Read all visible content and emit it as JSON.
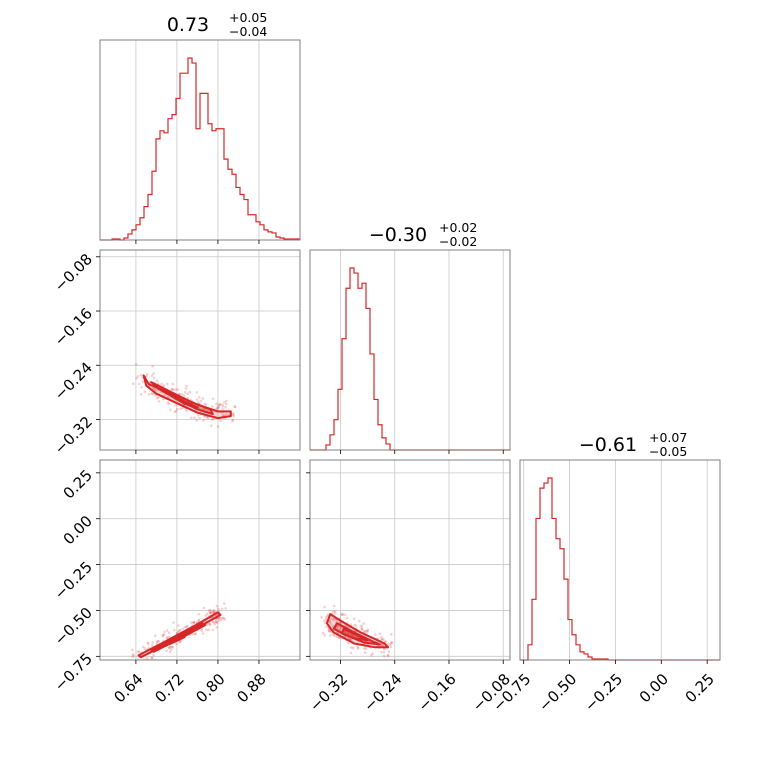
{
  "chart_data": {
    "type": "corner",
    "color": "#d62728",
    "grid": true,
    "parameters": [
      {
        "title": {
          "value": "0.73",
          "plus": "+0.05",
          "minus": "−0.04"
        },
        "ticks": [
          0.64,
          0.72,
          0.8,
          0.88
        ],
        "tick_labels": [
          "0.64",
          "0.72",
          "0.80",
          "0.88"
        ],
        "range": [
          0.57,
          0.96
        ],
        "hist_edges_start": 0.57,
        "hist_bin_width": 0.0078,
        "hist_counts": [
          0,
          0,
          0,
          1,
          1,
          0,
          2,
          6,
          10,
          15,
          22,
          33,
          45,
          68,
          100,
          108,
          106,
          120,
          124,
          140,
          165,
          165,
          180,
          175,
          110,
          145,
          145,
          115,
          108,
          110,
          110,
          80,
          70,
          65,
          52,
          45,
          40,
          25,
          25,
          18,
          15,
          10,
          8,
          7,
          3,
          2,
          1,
          1,
          1,
          1
        ]
      },
      {
        "title": {
          "value": "−0.30",
          "plus": "+0.02",
          "minus": "−0.02"
        },
        "ticks": [
          -0.32,
          -0.24,
          -0.16,
          -0.08
        ],
        "tick_labels": [
          "−0.32",
          "−0.24",
          "−0.16",
          "−0.08"
        ],
        "range": [
          -0.365,
          -0.07
        ],
        "hist_edges_start": -0.365,
        "hist_bin_width": 0.0059,
        "hist_counts": [
          0,
          0,
          0,
          0,
          5,
          15,
          30,
          60,
          110,
          160,
          180,
          175,
          160,
          165,
          140,
          95,
          50,
          25,
          12,
          6,
          0,
          0,
          0,
          0,
          0,
          0,
          0,
          0,
          0,
          0,
          0,
          0,
          0,
          0,
          0,
          0,
          0,
          0,
          0,
          0,
          0,
          0,
          0,
          0,
          0,
          0,
          0,
          0,
          0,
          0
        ]
      },
      {
        "title": {
          "value": "−0.61",
          "plus": "+0.07",
          "minus": "−0.05"
        },
        "ticks": [
          -0.75,
          -0.5,
          -0.25,
          0.0,
          0.25
        ],
        "tick_labels": [
          "−0.75",
          "−0.50",
          "−0.25",
          "0.00",
          "0.25"
        ],
        "range": [
          -0.77,
          0.32
        ],
        "hist_edges_start": -0.77,
        "hist_bin_width": 0.0218,
        "hist_counts": [
          0,
          0,
          15,
          60,
          140,
          170,
          175,
          180,
          140,
          120,
          110,
          80,
          40,
          25,
          15,
          8,
          6,
          3,
          1,
          1,
          1,
          1,
          0,
          0,
          0,
          0,
          0,
          0,
          0,
          0,
          0,
          0,
          0,
          0,
          0,
          0,
          0,
          0,
          0,
          0,
          0,
          0,
          0,
          0,
          0,
          0,
          0,
          0,
          0,
          0
        ]
      }
    ],
    "contours": {
      "p1_p0": [
        [
          [
            0.655,
            -0.255
          ],
          [
            0.665,
            -0.268
          ],
          [
            0.72,
            -0.285
          ],
          [
            0.76,
            -0.298
          ],
          [
            0.8,
            -0.308
          ],
          [
            0.825,
            -0.308
          ],
          [
            0.825,
            -0.315
          ],
          [
            0.8,
            -0.318
          ],
          [
            0.76,
            -0.31
          ],
          [
            0.72,
            -0.296
          ],
          [
            0.68,
            -0.282
          ],
          [
            0.66,
            -0.27
          ]
        ],
        [
          [
            0.67,
            -0.265
          ],
          [
            0.71,
            -0.28
          ],
          [
            0.75,
            -0.295
          ],
          [
            0.785,
            -0.305
          ],
          [
            0.79,
            -0.312
          ],
          [
            0.76,
            -0.305
          ],
          [
            0.72,
            -0.29
          ],
          [
            0.685,
            -0.275
          ]
        ],
        [
          [
            0.695,
            -0.277
          ],
          [
            0.725,
            -0.29
          ],
          [
            0.76,
            -0.302
          ],
          [
            0.735,
            -0.297
          ],
          [
            0.71,
            -0.286
          ]
        ]
      ],
      "p2_p0": [
        [
          [
            0.645,
            -0.745
          ],
          [
            0.7,
            -0.665
          ],
          [
            0.76,
            -0.575
          ],
          [
            0.8,
            -0.51
          ],
          [
            0.805,
            -0.525
          ],
          [
            0.765,
            -0.585
          ],
          [
            0.705,
            -0.675
          ],
          [
            0.65,
            -0.755
          ]
        ],
        [
          [
            0.67,
            -0.715
          ],
          [
            0.72,
            -0.645
          ],
          [
            0.77,
            -0.57
          ],
          [
            0.775,
            -0.58
          ],
          [
            0.725,
            -0.655
          ],
          [
            0.675,
            -0.725
          ]
        ],
        [
          [
            0.7,
            -0.675
          ],
          [
            0.73,
            -0.635
          ],
          [
            0.735,
            -0.645
          ],
          [
            0.705,
            -0.685
          ]
        ]
      ],
      "p2_p1": [
        [
          [
            -0.335,
            -0.52
          ],
          [
            -0.32,
            -0.555
          ],
          [
            -0.29,
            -0.62
          ],
          [
            -0.255,
            -0.68
          ],
          [
            -0.25,
            -0.7
          ],
          [
            -0.27,
            -0.7
          ],
          [
            -0.3,
            -0.68
          ],
          [
            -0.33,
            -0.62
          ],
          [
            -0.34,
            -0.57
          ]
        ],
        [
          [
            -0.325,
            -0.57
          ],
          [
            -0.305,
            -0.61
          ],
          [
            -0.275,
            -0.665
          ],
          [
            -0.262,
            -0.685
          ],
          [
            -0.285,
            -0.675
          ],
          [
            -0.315,
            -0.63
          ],
          [
            -0.33,
            -0.6
          ]
        ],
        [
          [
            -0.315,
            -0.6
          ],
          [
            -0.295,
            -0.635
          ],
          [
            -0.28,
            -0.662
          ],
          [
            -0.3,
            -0.652
          ],
          [
            -0.318,
            -0.625
          ]
        ]
      ]
    }
  }
}
